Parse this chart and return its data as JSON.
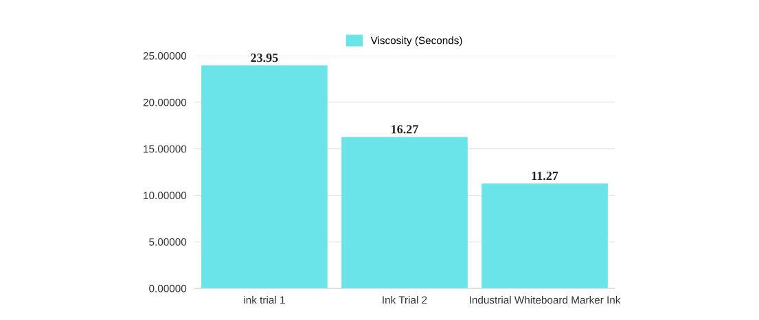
{
  "chart_data": {
    "type": "bar",
    "categories": [
      "ink trial 1",
      "Ink Trial 2",
      "Industrial Whiteboard Marker Ink"
    ],
    "series": [
      {
        "name": "Viscosity (Seconds)",
        "color": "#6ae4e8",
        "values": [
          23.95,
          16.27,
          11.27
        ]
      }
    ],
    "ylim": [
      0,
      25
    ],
    "yticks": [
      {
        "value": 0,
        "label": "0.00000"
      },
      {
        "value": 5,
        "label": "5.00000"
      },
      {
        "value": 10,
        "label": "10.00000"
      },
      {
        "value": 15,
        "label": "15.00000"
      },
      {
        "value": 20,
        "label": "20.00000"
      },
      {
        "value": 25,
        "label": "25.00000"
      }
    ],
    "grid": "y",
    "legend": "top",
    "data_labels": true
  }
}
